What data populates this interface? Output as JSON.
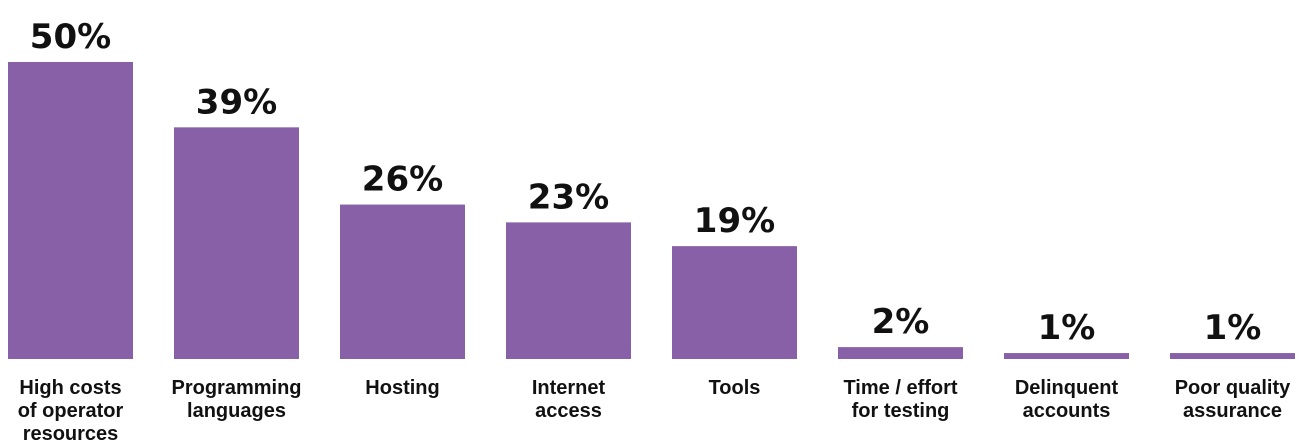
{
  "chart_data": {
    "type": "bar",
    "categories": [
      "High costs of operator resources",
      "Programming languages",
      "Hosting",
      "Internet access",
      "Tools",
      "Time / effort for testing",
      "Delinquent accounts",
      "Poor quality assurance"
    ],
    "category_lines": [
      [
        "High costs",
        "of operator",
        "resources"
      ],
      [
        "Programming",
        "languages"
      ],
      [
        "Hosting"
      ],
      [
        "Internet",
        "access"
      ],
      [
        "Tools"
      ],
      [
        "Time / effort",
        "for testing"
      ],
      [
        "Delinquent",
        "accounts"
      ],
      [
        "Poor quality",
        "assurance"
      ]
    ],
    "values": [
      50,
      39,
      26,
      23,
      19,
      2,
      1,
      1
    ],
    "value_labels": [
      "50%",
      "39%",
      "26%",
      "23%",
      "19%",
      "2%",
      "1%",
      "1%"
    ],
    "unit": "%",
    "ylim": [
      0,
      50
    ],
    "grid": false,
    "colors": {
      "bar": "#8860a8",
      "text": "#111111"
    }
  }
}
